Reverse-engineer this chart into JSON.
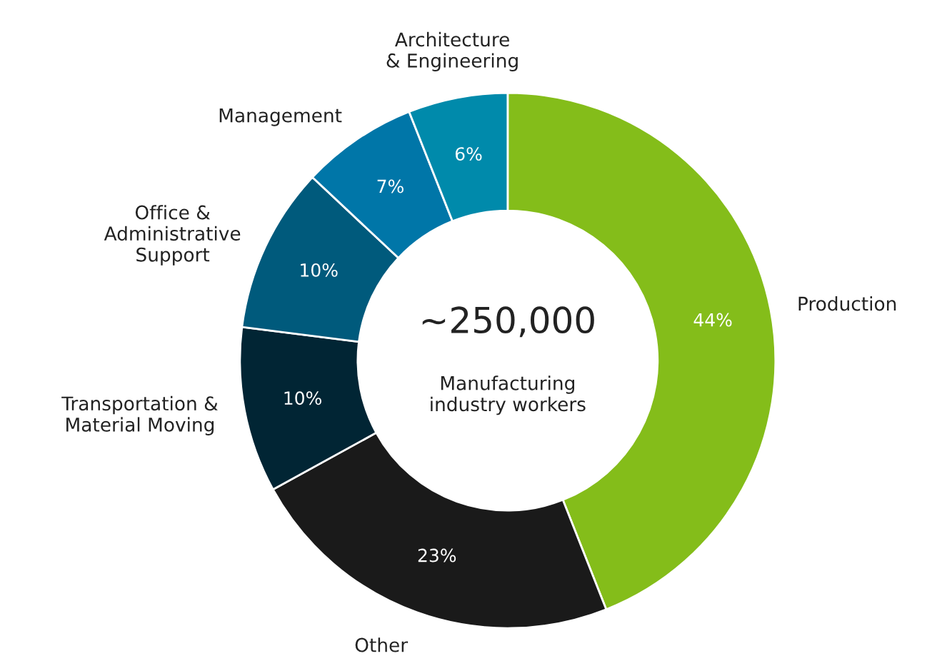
{
  "chart_data": {
    "type": "donut",
    "categories": [
      "Production",
      "Other",
      "Transportation &\nMaterial Moving",
      "Office &\nAdministrative\nSupport",
      "Management",
      "Architecture\n& Engineering"
    ],
    "values": [
      44,
      23,
      10,
      10,
      7,
      6
    ],
    "colors": [
      "#84bd1a",
      "#1a1a1a",
      "#012534",
      "#005a7c",
      "#0076a8",
      "#008aab"
    ],
    "value_labels": [
      "44%",
      "23%",
      "10%",
      "10%",
      "7%",
      "6%"
    ],
    "annotations": [
      "~250,000",
      "Manufacturing\nindustry workers"
    ],
    "legend": false
  }
}
